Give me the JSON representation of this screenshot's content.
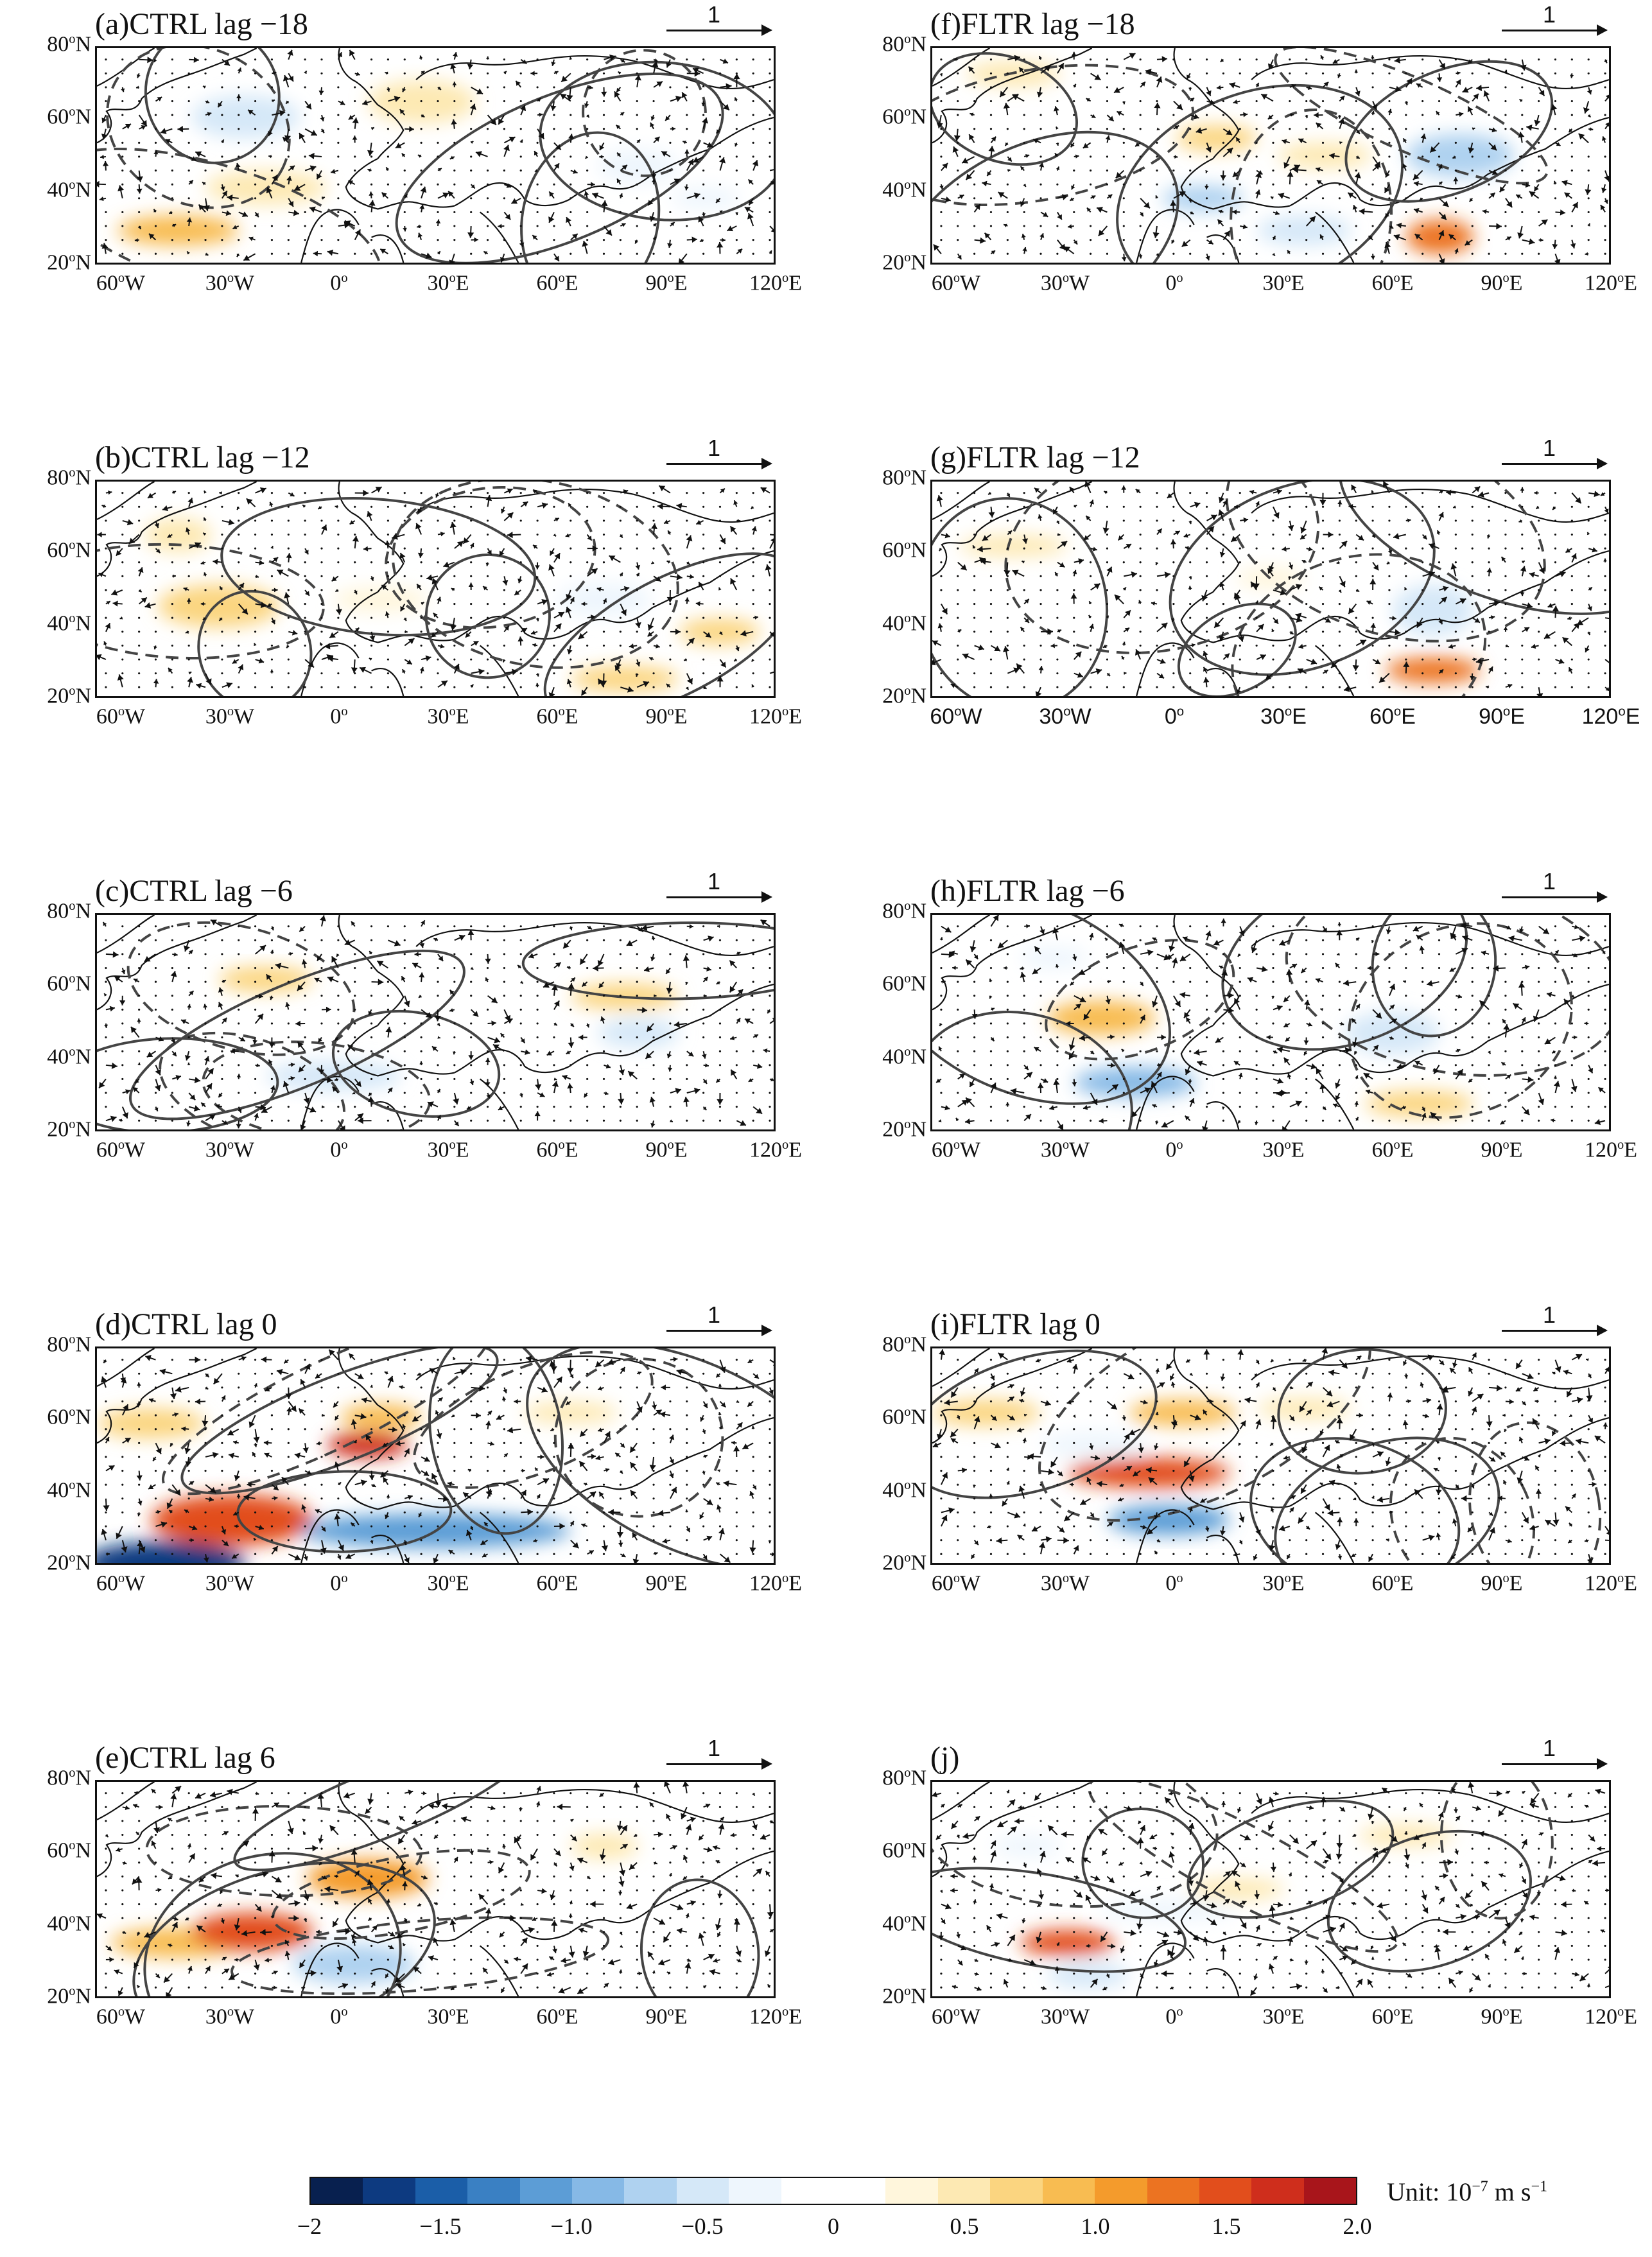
{
  "panels": [
    {
      "id": "a",
      "title": "(a)CTRL lag −18",
      "lon_style": "serif"
    },
    {
      "id": "b",
      "title": "(b)CTRL lag −12",
      "lon_style": "serif"
    },
    {
      "id": "c",
      "title": "(c)CTRL lag −6",
      "lon_style": "serif"
    },
    {
      "id": "d",
      "title": "(d)CTRL lag 0",
      "lon_style": "serif"
    },
    {
      "id": "e",
      "title": "(e)CTRL lag 6",
      "lon_style": "serif"
    },
    {
      "id": "f",
      "title": "(f)FLTR lag −18",
      "lon_style": "serif"
    },
    {
      "id": "g",
      "title": "(g)FLTR lag −12",
      "lon_style": "sans"
    },
    {
      "id": "h",
      "title": "(h)FLTR lag −6",
      "lon_style": "serif"
    },
    {
      "id": "i",
      "title": "(i)FLTR lag 0",
      "lon_style": "serif"
    },
    {
      "id": "j",
      "title": "(j)",
      "lon_style": "serif"
    }
  ],
  "reference_vector_label": "1",
  "lat_labels": [
    "80",
    "60",
    "40",
    "20"
  ],
  "lat_suffix": "N",
  "lon_labels": [
    "60",
    "30",
    "0",
    "30",
    "60",
    "90",
    "120"
  ],
  "lon_suffixes": [
    "W",
    "W",
    "",
    "E",
    "E",
    "E",
    "E"
  ],
  "degree_symbol": "o",
  "colorbar": {
    "min": -2,
    "max": 2,
    "tick_labels": [
      "−2",
      "−1.5",
      "−1.0",
      "−0.5",
      "0",
      "0.5",
      "1.0",
      "1.5",
      "2.0"
    ],
    "colors": [
      "#08204f",
      "#0d3a80",
      "#1b5ea8",
      "#3a80c3",
      "#5c9dd6",
      "#86b9e6",
      "#afd2f0",
      "#d5e8f8",
      "#eef6fd",
      "#ffffff",
      "#ffffff",
      "#fff6dc",
      "#fde9b3",
      "#fbd580",
      "#f8bc51",
      "#f49b2c",
      "#ec7321",
      "#e24e1c",
      "#cf2e1c",
      "#a8151b"
    ],
    "unit_prefix": "Unit:  10",
    "unit_exponent": "−7",
    "unit_suffix": " m s",
    "unit_suffix_exponent": "−1"
  }
}
